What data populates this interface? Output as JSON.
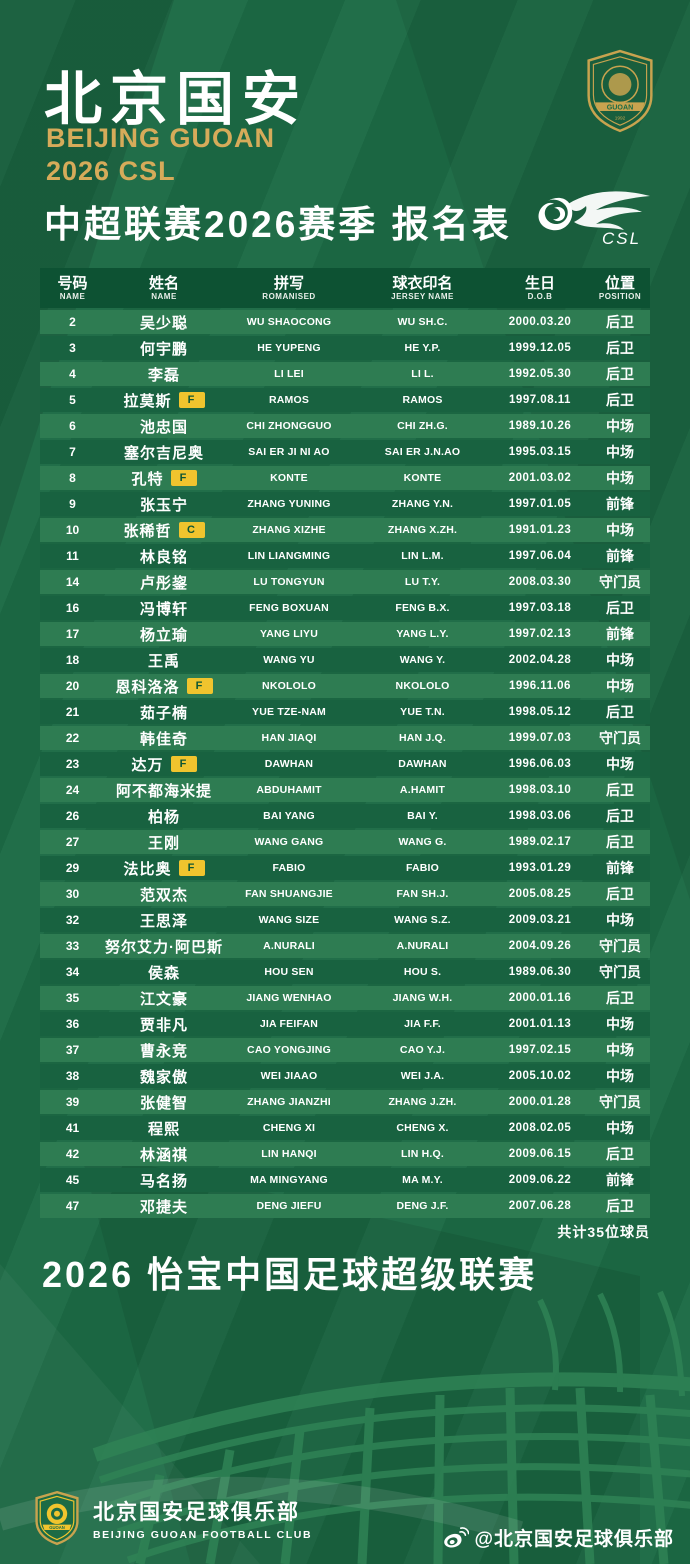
{
  "header": {
    "title_cn": "北京国安",
    "subtitle_en_line1": "BEIJING GUOAN",
    "subtitle_en_line2": "2026 CSL",
    "list_title": "中超联赛2026赛季 报名表",
    "csl_logo_label": "CSL",
    "crest": {
      "name": "GUOAN",
      "year": "1992"
    }
  },
  "colors": {
    "poster_green": "#1c6b45",
    "header_band": "#0d5233",
    "row_light": "#2e7c52",
    "row_dark": "#186240",
    "gold": "#d6ab5a",
    "badge_yellow": "#f0c42e"
  },
  "table": {
    "headers": [
      {
        "cn": "号码",
        "en": "NAME"
      },
      {
        "cn": "姓名",
        "en": "NAME"
      },
      {
        "cn": "拼写",
        "en": "ROMANISED"
      },
      {
        "cn": "球衣印名",
        "en": "JERSEY NAME"
      },
      {
        "cn": "生日",
        "en": "D.O.B"
      },
      {
        "cn": "位置",
        "en": "POSITION"
      }
    ],
    "badge_legend": {
      "F": "foreign-player",
      "C": "captain"
    },
    "rows": [
      {
        "no": "2",
        "name": "吴少聪",
        "badge": "",
        "romanised": "WU SHAOCONG",
        "jersey": "WU SH.C.",
        "dob": "2000.03.20",
        "position": "后卫"
      },
      {
        "no": "3",
        "name": "何宇鹏",
        "badge": "",
        "romanised": "HE YUPENG",
        "jersey": "HE Y.P.",
        "dob": "1999.12.05",
        "position": "后卫"
      },
      {
        "no": "4",
        "name": "李磊",
        "badge": "",
        "romanised": "LI LEI",
        "jersey": "LI L.",
        "dob": "1992.05.30",
        "position": "后卫"
      },
      {
        "no": "5",
        "name": "拉莫斯",
        "badge": "F",
        "romanised": "RAMOS",
        "jersey": "RAMOS",
        "dob": "1997.08.11",
        "position": "后卫"
      },
      {
        "no": "6",
        "name": "池忠国",
        "badge": "",
        "romanised": "CHI ZHONGGUO",
        "jersey": "CHI ZH.G.",
        "dob": "1989.10.26",
        "position": "中场"
      },
      {
        "no": "7",
        "name": "塞尔吉尼奥",
        "badge": "",
        "romanised": "SAI ER JI NI AO",
        "jersey": "SAI ER J.N.AO",
        "dob": "1995.03.15",
        "position": "中场"
      },
      {
        "no": "8",
        "name": "孔特",
        "badge": "F",
        "romanised": "KONTE",
        "jersey": "KONTE",
        "dob": "2001.03.02",
        "position": "中场"
      },
      {
        "no": "9",
        "name": "张玉宁",
        "badge": "",
        "romanised": "ZHANG YUNING",
        "jersey": "ZHANG Y.N.",
        "dob": "1997.01.05",
        "position": "前锋"
      },
      {
        "no": "10",
        "name": "张稀哲",
        "badge": "C",
        "romanised": "ZHANG XIZHE",
        "jersey": "ZHANG X.ZH.",
        "dob": "1991.01.23",
        "position": "中场"
      },
      {
        "no": "11",
        "name": "林良铭",
        "badge": "",
        "romanised": "LIN LIANGMING",
        "jersey": "LIN L.M.",
        "dob": "1997.06.04",
        "position": "前锋"
      },
      {
        "no": "14",
        "name": "卢彤鋆",
        "badge": "",
        "romanised": "LU TONGYUN",
        "jersey": "LU T.Y.",
        "dob": "2008.03.30",
        "position": "守门员"
      },
      {
        "no": "16",
        "name": "冯博轩",
        "badge": "",
        "romanised": "FENG BOXUAN",
        "jersey": "FENG B.X.",
        "dob": "1997.03.18",
        "position": "后卫"
      },
      {
        "no": "17",
        "name": "杨立瑜",
        "badge": "",
        "romanised": "YANG LIYU",
        "jersey": "YANG L.Y.",
        "dob": "1997.02.13",
        "position": "前锋"
      },
      {
        "no": "18",
        "name": "王禹",
        "badge": "",
        "romanised": "WANG YU",
        "jersey": "WANG Y.",
        "dob": "2002.04.28",
        "position": "中场"
      },
      {
        "no": "20",
        "name": "恩科洛洛",
        "badge": "F",
        "romanised": "NKOLOLO",
        "jersey": "NKOLOLO",
        "dob": "1996.11.06",
        "position": "中场"
      },
      {
        "no": "21",
        "name": "茹子楠",
        "badge": "",
        "romanised": "YUE TZE-NAM",
        "jersey": "YUE T.N.",
        "dob": "1998.05.12",
        "position": "后卫"
      },
      {
        "no": "22",
        "name": "韩佳奇",
        "badge": "",
        "romanised": "HAN JIAQI",
        "jersey": "HAN J.Q.",
        "dob": "1999.07.03",
        "position": "守门员"
      },
      {
        "no": "23",
        "name": "达万",
        "badge": "F",
        "romanised": "DAWHAN",
        "jersey": "DAWHAN",
        "dob": "1996.06.03",
        "position": "中场"
      },
      {
        "no": "24",
        "name": "阿不都海米提",
        "badge": "",
        "romanised": "ABDUHAMIT",
        "jersey": "A.HAMIT",
        "dob": "1998.03.10",
        "position": "后卫"
      },
      {
        "no": "26",
        "name": "柏杨",
        "badge": "",
        "romanised": "BAI YANG",
        "jersey": "BAI Y.",
        "dob": "1998.03.06",
        "position": "后卫"
      },
      {
        "no": "27",
        "name": "王刚",
        "badge": "",
        "romanised": "WANG GANG",
        "jersey": "WANG G.",
        "dob": "1989.02.17",
        "position": "后卫"
      },
      {
        "no": "29",
        "name": "法比奥",
        "badge": "F",
        "romanised": "FABIO",
        "jersey": "FABIO",
        "dob": "1993.01.29",
        "position": "前锋"
      },
      {
        "no": "30",
        "name": "范双杰",
        "badge": "",
        "romanised": "FAN SHUANGJIE",
        "jersey": "FAN SH.J.",
        "dob": "2005.08.25",
        "position": "后卫"
      },
      {
        "no": "32",
        "name": "王思泽",
        "badge": "",
        "romanised": "WANG SIZE",
        "jersey": "WANG S.Z.",
        "dob": "2009.03.21",
        "position": "中场"
      },
      {
        "no": "33",
        "name": "努尔艾力·阿巴斯",
        "badge": "",
        "romanised": "A.NURALI",
        "jersey": "A.NURALI",
        "dob": "2004.09.26",
        "position": "守门员"
      },
      {
        "no": "34",
        "name": "侯森",
        "badge": "",
        "romanised": "HOU SEN",
        "jersey": "HOU S.",
        "dob": "1989.06.30",
        "position": "守门员"
      },
      {
        "no": "35",
        "name": "江文豪",
        "badge": "",
        "romanised": "JIANG WENHAO",
        "jersey": "JIANG W.H.",
        "dob": "2000.01.16",
        "position": "后卫"
      },
      {
        "no": "36",
        "name": "贾非凡",
        "badge": "",
        "romanised": "JIA FEIFAN",
        "jersey": "JIA F.F.",
        "dob": "2001.01.13",
        "position": "中场"
      },
      {
        "no": "37",
        "name": "曹永竞",
        "badge": "",
        "romanised": "CAO YONGJING",
        "jersey": "CAO Y.J.",
        "dob": "1997.02.15",
        "position": "中场"
      },
      {
        "no": "38",
        "name": "魏家傲",
        "badge": "",
        "romanised": "WEI JIAAO",
        "jersey": "WEI J.A.",
        "dob": "2005.10.02",
        "position": "中场"
      },
      {
        "no": "39",
        "name": "张健智",
        "badge": "",
        "romanised": "ZHANG JIANZHI",
        "jersey": "ZHANG J.ZH.",
        "dob": "2000.01.28",
        "position": "守门员"
      },
      {
        "no": "41",
        "name": "程熙",
        "badge": "",
        "romanised": "CHENG XI",
        "jersey": "CHENG X.",
        "dob": "2008.02.05",
        "position": "中场"
      },
      {
        "no": "42",
        "name": "林涵祺",
        "badge": "",
        "romanised": "LIN HANQI",
        "jersey": "LIN H.Q.",
        "dob": "2009.06.15",
        "position": "后卫"
      },
      {
        "no": "45",
        "name": "马名扬",
        "badge": "",
        "romanised": "MA MINGYANG",
        "jersey": "MA M.Y.",
        "dob": "2009.06.22",
        "position": "前锋"
      },
      {
        "no": "47",
        "name": "邓捷夫",
        "badge": "",
        "romanised": "DENG JIEFU",
        "jersey": "DENG J.F.",
        "dob": "2007.06.28",
        "position": "后卫"
      }
    ]
  },
  "summary": {
    "total_note": "共计35位球员",
    "league_title": "2026 怡宝中国足球超级联赛"
  },
  "footer": {
    "club_cn": "北京国安足球俱乐部",
    "club_en": "BEIJING GUOAN FOOTBALL CLUB",
    "weibo_handle": "@北京国安足球俱乐部"
  }
}
